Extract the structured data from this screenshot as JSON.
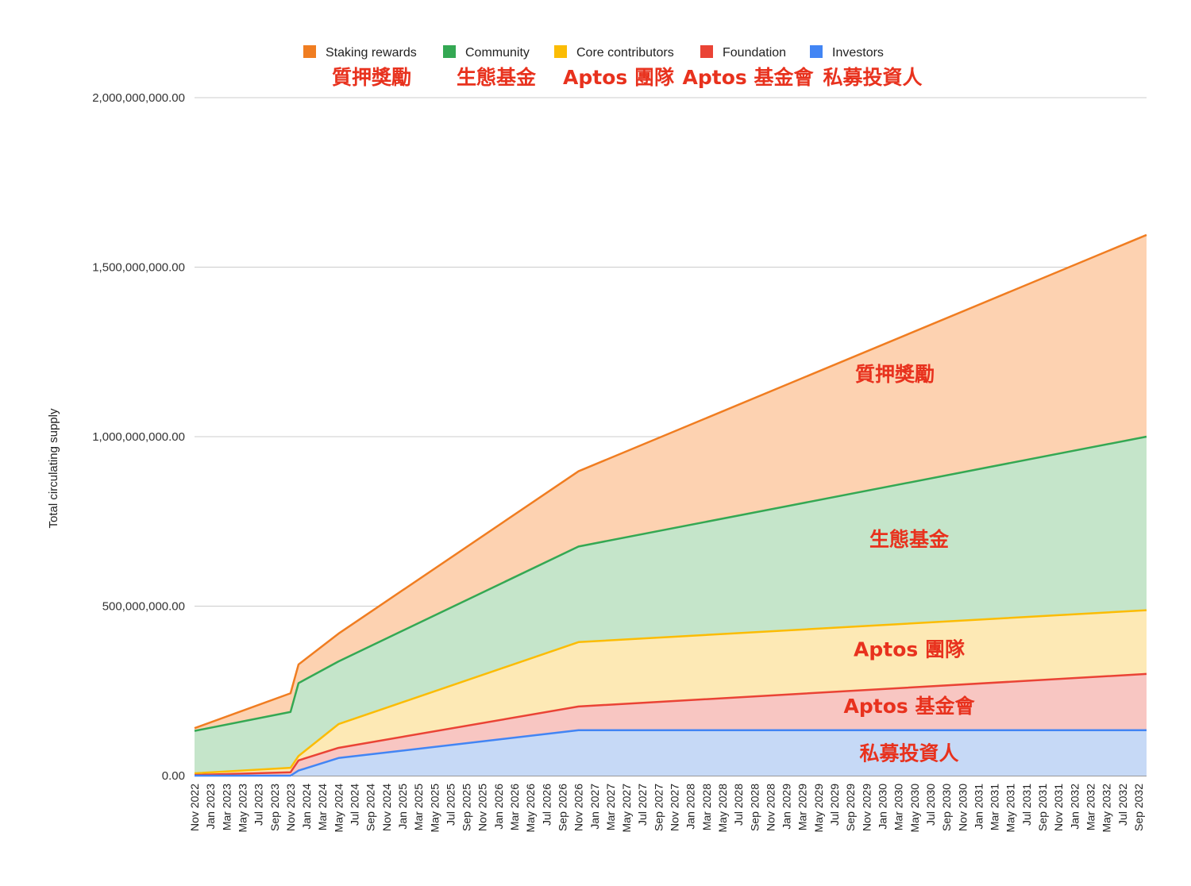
{
  "chart_data": {
    "type": "area",
    "stacked": true,
    "ylabel": "Total circulating supply",
    "ylim": [
      0,
      2000000000
    ],
    "y_ticks": [
      "0.00",
      "500,000,000.00",
      "1,000,000,000.00",
      "1,500,000,000.00",
      "2,000,000,000.00"
    ],
    "y_tick_values": [
      0,
      500000000,
      1000000000,
      1500000000,
      2000000000
    ],
    "x_tick_labels": [
      "Nov 2022",
      "Jan 2023",
      "Mar 2023",
      "May 2023",
      "Jul 2023",
      "Sep 2023",
      "Nov 2023",
      "Jan 2024",
      "Mar 2024",
      "May 2024",
      "Jul 2024",
      "Sep 2024",
      "Nov 2024",
      "Jan 2025",
      "Mar 2025",
      "May 2025",
      "Jul 2025",
      "Sep 2025",
      "Nov 2025",
      "Jan 2026",
      "Mar 2026",
      "May 2026",
      "Jul 2026",
      "Sep 2026",
      "Nov 2026",
      "Jan 2027",
      "Mar 2027",
      "May 2027",
      "Jul 2027",
      "Sep 2027",
      "Nov 2027",
      "Jan 2028",
      "Mar 2028",
      "May 2028",
      "Jul 2028",
      "Sep 2028",
      "Nov 2028",
      "Jan 2029",
      "Mar 2029",
      "May 2029",
      "Jul 2029",
      "Sep 2029",
      "Nov 2029",
      "Jan 2030",
      "Mar 2030",
      "May 2030",
      "Jul 2030",
      "Sep 2030",
      "Nov 2030",
      "Jan 2031",
      "Mar 2031",
      "May 2031",
      "Jul 2031",
      "Sep 2031",
      "Nov 2031",
      "Jan 2032",
      "Mar 2032",
      "May 2032",
      "Jul 2032",
      "Sep 2032"
    ],
    "x": [
      "Nov 2022",
      "Nov 2023",
      "Dec 2023",
      "May 2024",
      "Nov 2026",
      "Oct 2032"
    ],
    "grid": true,
    "legend_position": "top",
    "series": [
      {
        "name": "Investors",
        "color": "#4285f4",
        "fill": "#c6d9f6",
        "values": [
          0,
          0,
          15000000,
          52000000,
          134000000,
          134000000
        ]
      },
      {
        "name": "Foundation",
        "color": "#ea4335",
        "fill": "#f8c6c2",
        "values": [
          2000000,
          10000000,
          30000000,
          30000000,
          70000000,
          166000000
        ]
      },
      {
        "name": "Core contributors",
        "color": "#fbbc04",
        "fill": "#fde9b5",
        "values": [
          5000000,
          13000000,
          13000000,
          70000000,
          190000000,
          188000000
        ]
      },
      {
        "name": "Community",
        "color": "#34a853",
        "fill": "#c5e5ca",
        "values": [
          125000000,
          165000000,
          215000000,
          185000000,
          282000000,
          512000000
        ]
      },
      {
        "name": "Staking rewards",
        "color": "#f07d21",
        "fill": "#fdd2b1",
        "values": [
          8000000,
          55000000,
          55000000,
          82000000,
          222000000,
          595000000
        ]
      }
    ],
    "annotations": [
      {
        "text": "質押獎勵",
        "series": "Staking rewards"
      },
      {
        "text": "生態基金",
        "series": "Community"
      },
      {
        "text": "Aptos 團隊",
        "series": "Core contributors"
      },
      {
        "text": "Aptos 基金會",
        "series": "Foundation"
      },
      {
        "text": "私募投資人",
        "series": "Investors"
      }
    ],
    "legend": [
      {
        "label": "Staking rewards",
        "color": "#f07d21",
        "translation": "質押獎勵"
      },
      {
        "label": "Community",
        "color": "#34a853",
        "translation": "生態基金"
      },
      {
        "label": "Core contributors",
        "color": "#fbbc04",
        "translation": "Aptos 團隊"
      },
      {
        "label": "Foundation",
        "color": "#ea4335",
        "translation": "Aptos 基金會"
      },
      {
        "label": "Investors",
        "color": "#4285f4",
        "translation": "私募投資人"
      }
    ]
  }
}
